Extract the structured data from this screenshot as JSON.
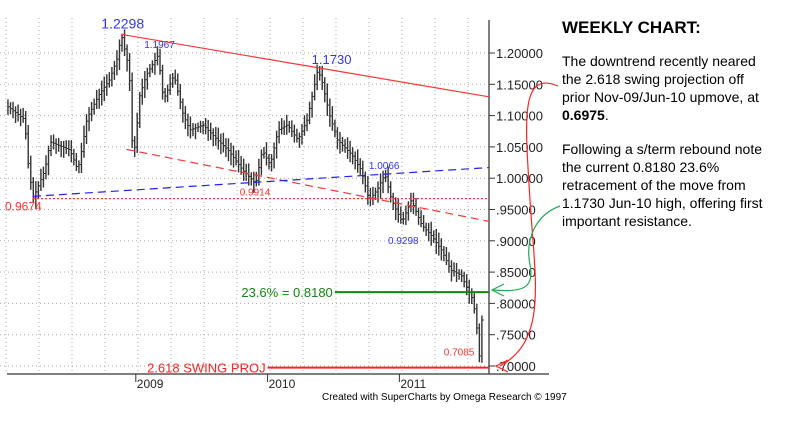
{
  "chart_data": {
    "type": "bar",
    "subtype": "weekly OHLC price bars",
    "title": "WEEKLY CHART:",
    "xlabel": "",
    "ylabel": "",
    "x_ticks": [
      "2009",
      "2010",
      "2011"
    ],
    "x_tick_values": [
      2009,
      2010,
      2011
    ],
    "xlim": [
      2008.0,
      2011.68
    ],
    "y_ticks": [
      "1.20000",
      "1.15000",
      "1.10000",
      "1.05000",
      "1.00000",
      ".95000",
      ".90000",
      ".85000",
      ".80000",
      ".75000",
      ".70000"
    ],
    "y_tick_values": [
      1.2,
      1.15,
      1.1,
      1.05,
      1.0,
      0.95,
      0.9,
      0.85,
      0.8,
      0.75,
      0.7
    ],
    "ylim": [
      0.687,
      1.258
    ],
    "grid": true,
    "y_axis_side": "right",
    "price_path": [
      [
        2008.03,
        1.114
      ],
      [
        2008.16,
        1.093
      ],
      [
        2008.17,
        1.045
      ],
      [
        2008.22,
        0.967
      ],
      [
        2008.31,
        1.013
      ],
      [
        2008.35,
        1.058
      ],
      [
        2008.5,
        1.045
      ],
      [
        2008.56,
        1.013
      ],
      [
        2008.59,
        1.045
      ],
      [
        2008.63,
        1.096
      ],
      [
        2008.72,
        1.133
      ],
      [
        2008.8,
        1.157
      ],
      [
        2008.86,
        1.192
      ],
      [
        2008.89,
        1.2298
      ],
      [
        2008.95,
        1.173
      ],
      [
        2008.97,
        1.061
      ],
      [
        2009.0,
        1.045
      ],
      [
        2009.02,
        1.125
      ],
      [
        2009.08,
        1.165
      ],
      [
        2009.17,
        1.1967
      ],
      [
        2009.21,
        1.125
      ],
      [
        2009.29,
        1.165
      ],
      [
        2009.36,
        1.101
      ],
      [
        2009.41,
        1.077
      ],
      [
        2009.51,
        1.085
      ],
      [
        2009.62,
        1.061
      ],
      [
        2009.7,
        1.045
      ],
      [
        2009.81,
        1.013
      ],
      [
        2009.91,
        0.9914
      ],
      [
        2009.96,
        1.045
      ],
      [
        2010.02,
        1.021
      ],
      [
        2010.08,
        1.077
      ],
      [
        2010.15,
        1.085
      ],
      [
        2010.23,
        1.061
      ],
      [
        2010.3,
        1.093
      ],
      [
        2010.34,
        1.133
      ],
      [
        2010.38,
        1.173
      ],
      [
        2010.41,
        1.157
      ],
      [
        2010.47,
        1.101
      ],
      [
        2010.53,
        1.061
      ],
      [
        2010.64,
        1.037
      ],
      [
        2010.71,
        1.013
      ],
      [
        2010.77,
        0.965
      ],
      [
        2010.83,
        0.981
      ],
      [
        2010.89,
        1.0066
      ],
      [
        2010.94,
        0.965
      ],
      [
        2011.02,
        0.9298
      ],
      [
        2011.09,
        0.965
      ],
      [
        2011.17,
        0.925
      ],
      [
        2011.24,
        0.909
      ],
      [
        2011.32,
        0.885
      ],
      [
        2011.39,
        0.853
      ],
      [
        2011.47,
        0.845
      ],
      [
        2011.52,
        0.821
      ],
      [
        2011.56,
        0.805
      ],
      [
        2011.59,
        0.757
      ],
      [
        2011.61,
        0.7085
      ],
      [
        2011.63,
        0.789
      ]
    ],
    "point_labels": [
      {
        "text": "1.2298",
        "x": 2008.89,
        "y": 1.2298,
        "color": "#3333ff"
      },
      {
        "text": "1.1967",
        "x": 2009.17,
        "y": 1.1967,
        "color": "#3333ff"
      },
      {
        "text": "1.1730",
        "x": 2010.38,
        "y": 1.173,
        "color": "#3333ff"
      },
      {
        "text": "1.0066",
        "x": 2010.89,
        "y": 1.0066,
        "color": "#3333ff"
      },
      {
        "text": "0.9298",
        "x": 2011.02,
        "y": 0.9298,
        "color": "#3333ff"
      },
      {
        "text": "0.9914",
        "x": 2009.91,
        "y": 0.9914,
        "color": "#ff3333"
      },
      {
        "text": "0.9674",
        "x": 2008.22,
        "y": 0.9674,
        "color": "#ff3333"
      },
      {
        "text": "0.7085",
        "x": 2011.61,
        "y": 0.7085,
        "color": "#ff3333"
      }
    ],
    "trendlines": [
      {
        "from": [
          2008.89,
          1.2298
        ],
        "to": [
          2011.68,
          1.13
        ],
        "color": "#ff3333",
        "style": "solid"
      },
      {
        "from": [
          2008.93,
          1.046
        ],
        "to": [
          2011.68,
          0.931
        ],
        "color": "#ff3333",
        "style": "dashed"
      },
      {
        "from": [
          2008.22,
          0.971
        ],
        "to": [
          2011.68,
          1.017
        ],
        "color": "#2222ee",
        "style": "dashed"
      },
      {
        "from": [
          2008.22,
          0.9674
        ],
        "to": [
          2011.68,
          0.9674
        ],
        "color": "#ff3333",
        "style": "dotted"
      }
    ],
    "levels": [
      {
        "label": "23.6% = 0.8180",
        "value": 0.818,
        "from": 2010.51,
        "color": "#118811"
      },
      {
        "label": "2.618 SWING PROJ",
        "value": 0.6975,
        "from": 2010.0,
        "color": "#ff2222"
      }
    ]
  },
  "commentary": {
    "heading": "WEEKLY CHART:",
    "para1_lines": [
      "The downtrend recently neared",
      "the 2.618 swing projection off",
      "prior Nov-09/Jun-10 upmove, at"
    ],
    "para1_value": "0.6975",
    "para1_end": ".",
    "para2_lines": [
      "Following a s/term rebound note",
      "the current 0.8180 23.6%",
      "retracement of the move from",
      "1.1730 Jun-10 high, offering first",
      "important resistance."
    ]
  },
  "credit": "Created with SuperCharts by Omega Research © 1997",
  "colors": {
    "bars": "#333333",
    "grid": "#aaaaaa",
    "red": "#ff2222",
    "green": "#118811",
    "blue": "#2222ee"
  }
}
